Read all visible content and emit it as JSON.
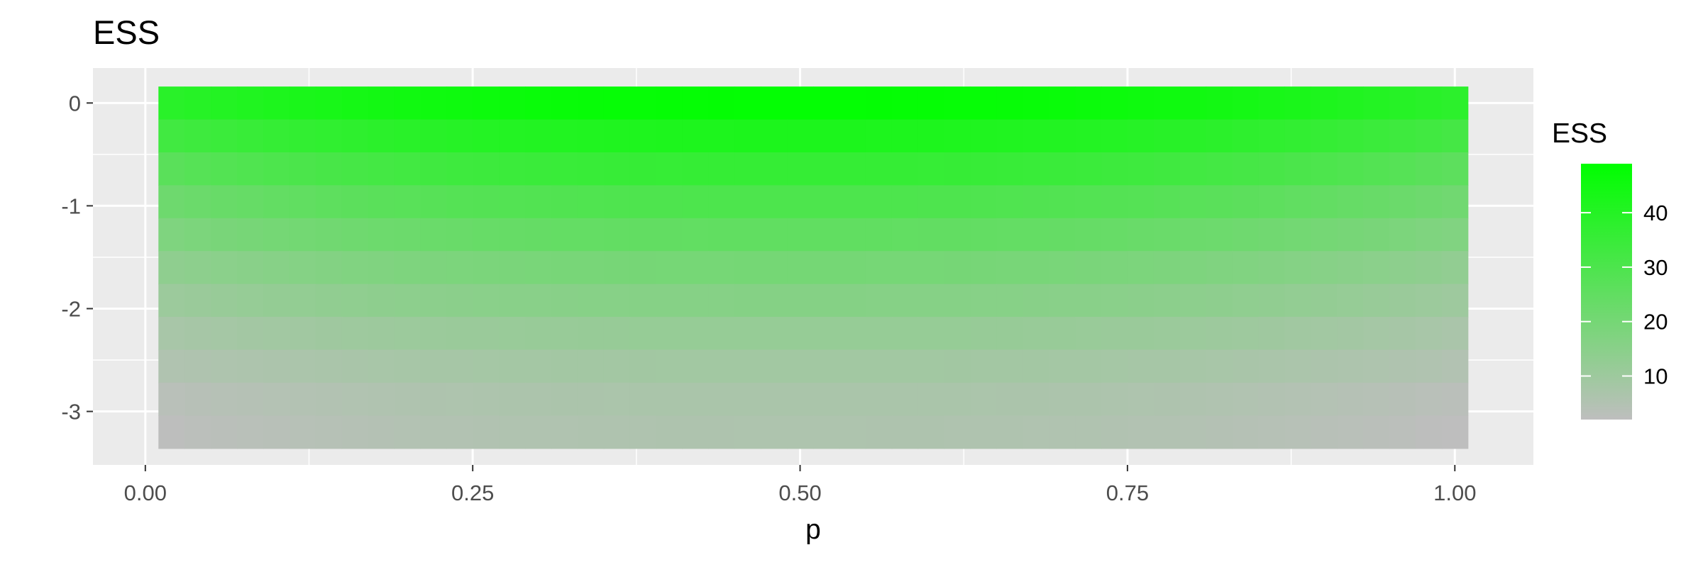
{
  "chart_data": {
    "type": "heatmap",
    "title": "ESS",
    "xlabel": "p",
    "ylabel": "",
    "x_ticks": [
      "0.00",
      "0.25",
      "0.50",
      "0.75",
      "1.00"
    ],
    "x_tick_values": [
      0.0,
      0.25,
      0.5,
      0.75,
      1.0
    ],
    "y_ticks": [
      "0",
      "-1",
      "-2",
      "-3"
    ],
    "y_tick_values": [
      0,
      -1,
      -2,
      -3
    ],
    "xlim": [
      -0.04,
      1.06
    ],
    "ylim": [
      -3.52,
      0.34
    ],
    "x_range": [
      0.01,
      1.01
    ],
    "x_bins": 50,
    "y_rows": [
      0,
      -0.32,
      -0.64,
      -0.96,
      -1.28,
      -1.6,
      -1.92,
      -2.24,
      -2.56,
      -2.88,
      -3.2
    ],
    "row_center_ess": [
      48,
      42,
      36,
      30,
      25,
      20,
      16,
      12,
      9,
      7,
      6
    ],
    "row_edge_ess": [
      38,
      32,
      26,
      21,
      17,
      13,
      10,
      7,
      5,
      3,
      2
    ],
    "color_low": "#bebebe",
    "color_high": "#00ff00",
    "panel_background": "#ebebeb",
    "grid": true,
    "grid_color": "#ffffff",
    "legend": {
      "title": "ESS",
      "position": "right",
      "ticks": [
        "10",
        "20",
        "30",
        "40"
      ],
      "tick_values": [
        10,
        20,
        30,
        40
      ],
      "range": [
        2,
        49
      ]
    }
  }
}
